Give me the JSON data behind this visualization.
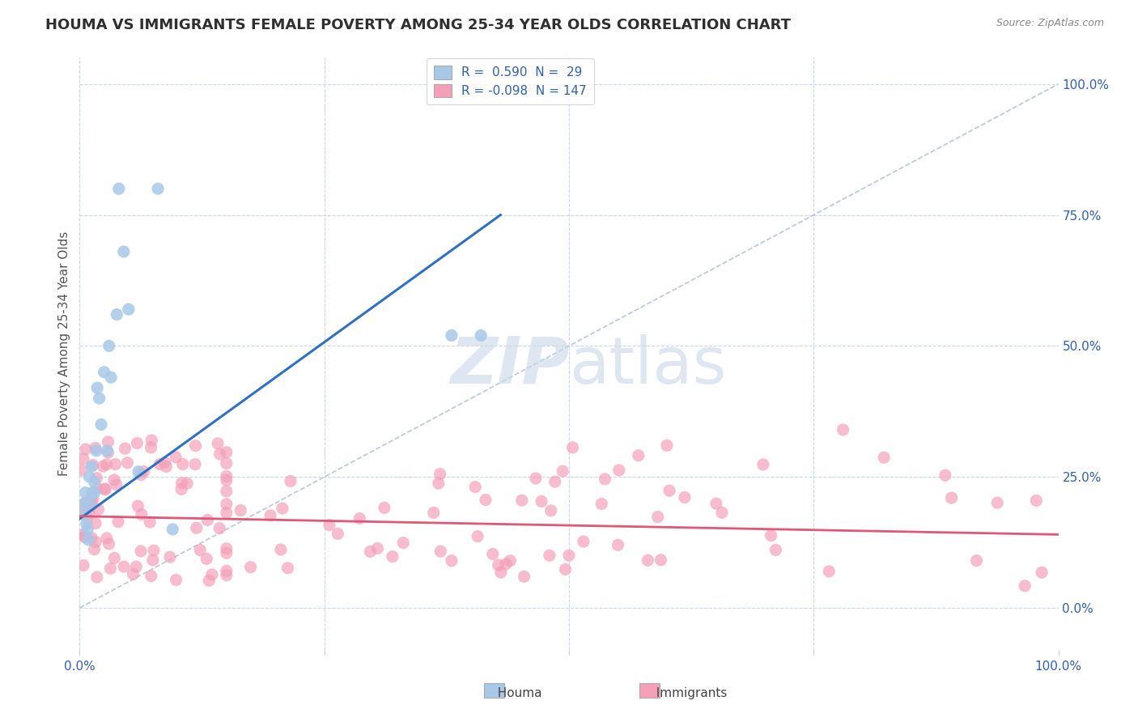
{
  "title": "HOUMA VS IMMIGRANTS FEMALE POVERTY AMONG 25-34 YEAR OLDS CORRELATION CHART",
  "source": "Source: ZipAtlas.com",
  "ylabel": "Female Poverty Among 25-34 Year Olds",
  "houma_R": 0.59,
  "houma_N": 29,
  "immigrants_R": -0.098,
  "immigrants_N": 147,
  "houma_color": "#a8c8e8",
  "immigrants_color": "#f4a0b8",
  "houma_line_color": "#3070c0",
  "immigrants_line_color": "#e05878",
  "ref_line_color": "#b8c8d8",
  "background_color": "#ffffff",
  "grid_color": "#c8d8e8",
  "title_color": "#303030",
  "axis_color": "#3060b0",
  "legend_text_color": "#3060b0",
  "watermark_color": "#c8d8e8",
  "xlim": [
    0.0,
    1.0
  ],
  "ylim": [
    -0.08,
    1.05
  ],
  "xticks": [
    0.0,
    0.25,
    0.5,
    0.75,
    1.0
  ],
  "yticks": [
    0.0,
    0.25,
    0.5,
    0.75,
    1.0
  ],
  "ytick_labels_right": [
    "0.0%",
    "25.0%",
    "50.0%",
    "75.0%",
    "100.0%"
  ],
  "houma_x": [
    0.005,
    0.005,
    0.006,
    0.007,
    0.008,
    0.009,
    0.01,
    0.01,
    0.012,
    0.013,
    0.015,
    0.015,
    0.017,
    0.018,
    0.02,
    0.022,
    0.025,
    0.028,
    0.03,
    0.032,
    0.038,
    0.04,
    0.045,
    0.05,
    0.06,
    0.08,
    0.095,
    0.38,
    0.41
  ],
  "houma_y": [
    0.2,
    0.18,
    0.22,
    0.16,
    0.15,
    0.13,
    0.25,
    0.2,
    0.27,
    0.22,
    0.24,
    0.22,
    0.3,
    0.42,
    0.4,
    0.35,
    0.45,
    0.3,
    0.5,
    0.44,
    0.56,
    0.8,
    0.68,
    0.57,
    0.26,
    0.8,
    0.15,
    0.52,
    0.52
  ],
  "houma_line_x": [
    0.0,
    0.43
  ],
  "houma_line_y": [
    0.17,
    0.75
  ],
  "immigrants_line_x": [
    0.0,
    1.0
  ],
  "immigrants_line_y": [
    0.175,
    0.14
  ],
  "ref_line_x": [
    0.0,
    1.0
  ],
  "ref_line_y": [
    0.0,
    1.0
  ]
}
